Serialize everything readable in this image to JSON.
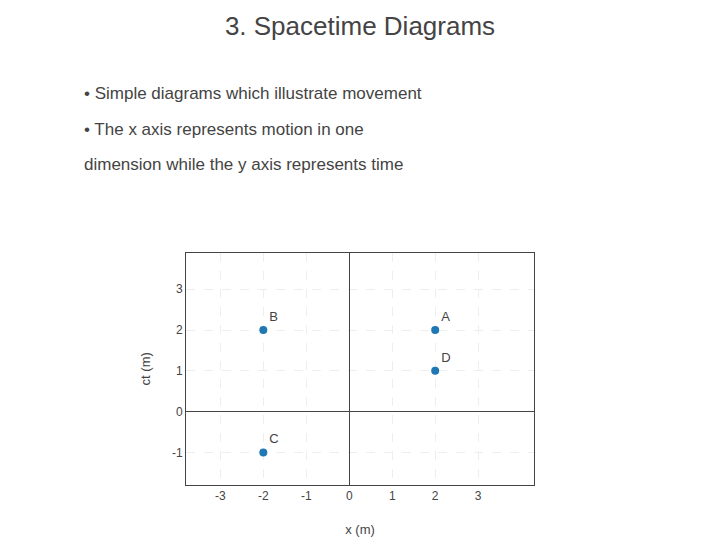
{
  "chart_data": {
    "type": "scatter",
    "title": "3. Spacetime Diagrams",
    "annotations": [
      "• Simple diagrams which illustrate movement",
      "• The x axis represents motion in one",
      "dimension while the y axis represents time"
    ],
    "x_label": "x (m)",
    "y_label": "ct (m)",
    "x": [
      2,
      -2,
      -2,
      2
    ],
    "values": [
      2,
      2,
      -1,
      1
    ],
    "labels": [
      "A",
      "B",
      "C",
      "D"
    ],
    "xlim": [
      -3.8,
      4.3
    ],
    "xticks": [
      -3,
      -2,
      -1,
      0,
      1,
      2,
      3
    ],
    "ylim": [
      -1.8,
      3.9
    ],
    "yticks": [
      -1,
      0,
      1,
      2,
      3
    ],
    "grid": true
  }
}
